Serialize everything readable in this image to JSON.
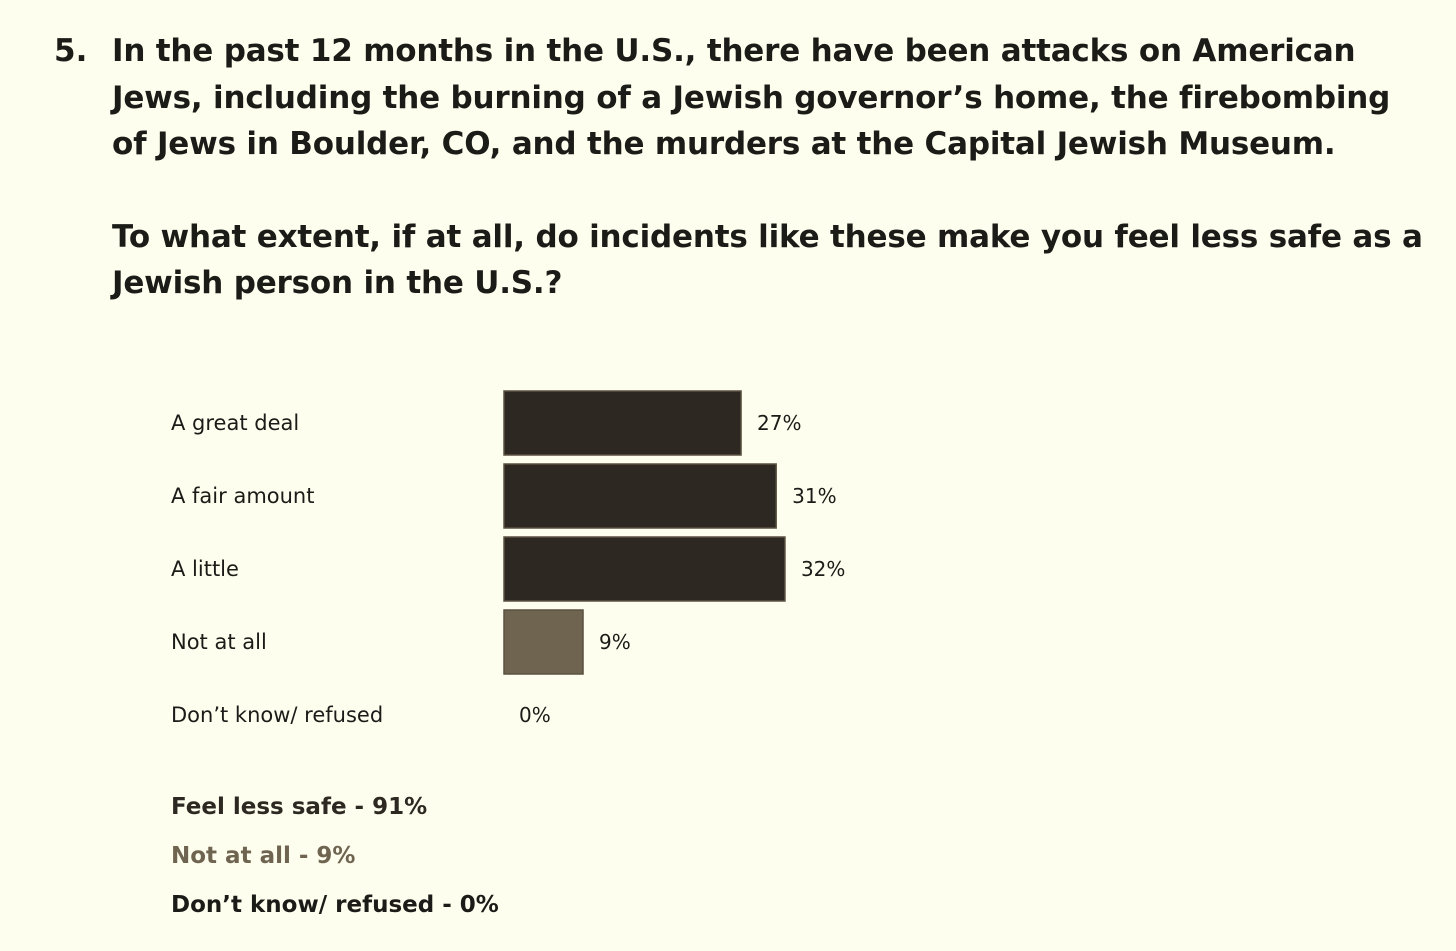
{
  "question": {
    "number": "5.",
    "statement": "In the past 12 months in the U.S., there have been attacks on American Jews, including the burning of a Jewish governor’s home, the firebombing of Jews in Boulder, CO, and the murders at the Capital Jewish Museum.",
    "prompt": "To what extent, if at all, do incidents like these make you feel less safe as a Jewish person in the U.S.?"
  },
  "chart_data": {
    "type": "bar",
    "orientation": "horizontal",
    "categories": [
      "A great deal",
      "A fair amount",
      "A little",
      "Not at all",
      "Don’t know/ refused"
    ],
    "values": [
      27,
      31,
      32,
      9,
      0
    ],
    "value_labels": [
      "27%",
      "31%",
      "32%",
      "9%",
      "0%"
    ],
    "bar_colors": [
      "#2d2922",
      "#2d2922",
      "#2d2922",
      "#6f6450",
      "#6f6450"
    ],
    "title": "",
    "xlabel": "",
    "ylabel": "",
    "xlim": [
      0,
      100
    ],
    "grid": false,
    "legend": "none"
  },
  "summary": [
    {
      "text": "Feel less safe - 91%",
      "color": "#2d2922"
    },
    {
      "text": "Not at all - 9%",
      "color": "#6f6450"
    },
    {
      "text": "Don’t know/ refused - 0%",
      "color": "#1b1b18"
    }
  ]
}
